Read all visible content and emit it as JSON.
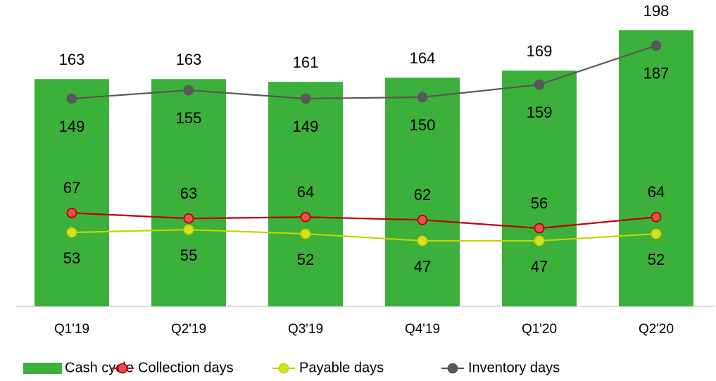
{
  "chart_data": {
    "type": "bar_line",
    "categories": [
      "Q1'19",
      "Q2'19",
      "Q3'19",
      "Q4'19",
      "Q1'20",
      "Q2'20"
    ],
    "series": [
      {
        "name": "Cash cycle",
        "type": "bar",
        "color": "#3bb03b",
        "values": [
          163,
          163,
          161,
          164,
          169,
          198
        ]
      },
      {
        "name": "Collection days",
        "type": "line",
        "color": "#c00000",
        "marker_color": "#e05252",
        "values": [
          67,
          63,
          64,
          62,
          56,
          64
        ]
      },
      {
        "name": "Payable days",
        "type": "line",
        "color": "#c5d300",
        "marker_color": "#d7e21c",
        "values": [
          53,
          55,
          52,
          47,
          47,
          52
        ]
      },
      {
        "name": "Inventory days",
        "type": "line",
        "color": "#595959",
        "marker_color": "#595959",
        "values": [
          149,
          155,
          149,
          150,
          159,
          187
        ]
      }
    ]
  }
}
